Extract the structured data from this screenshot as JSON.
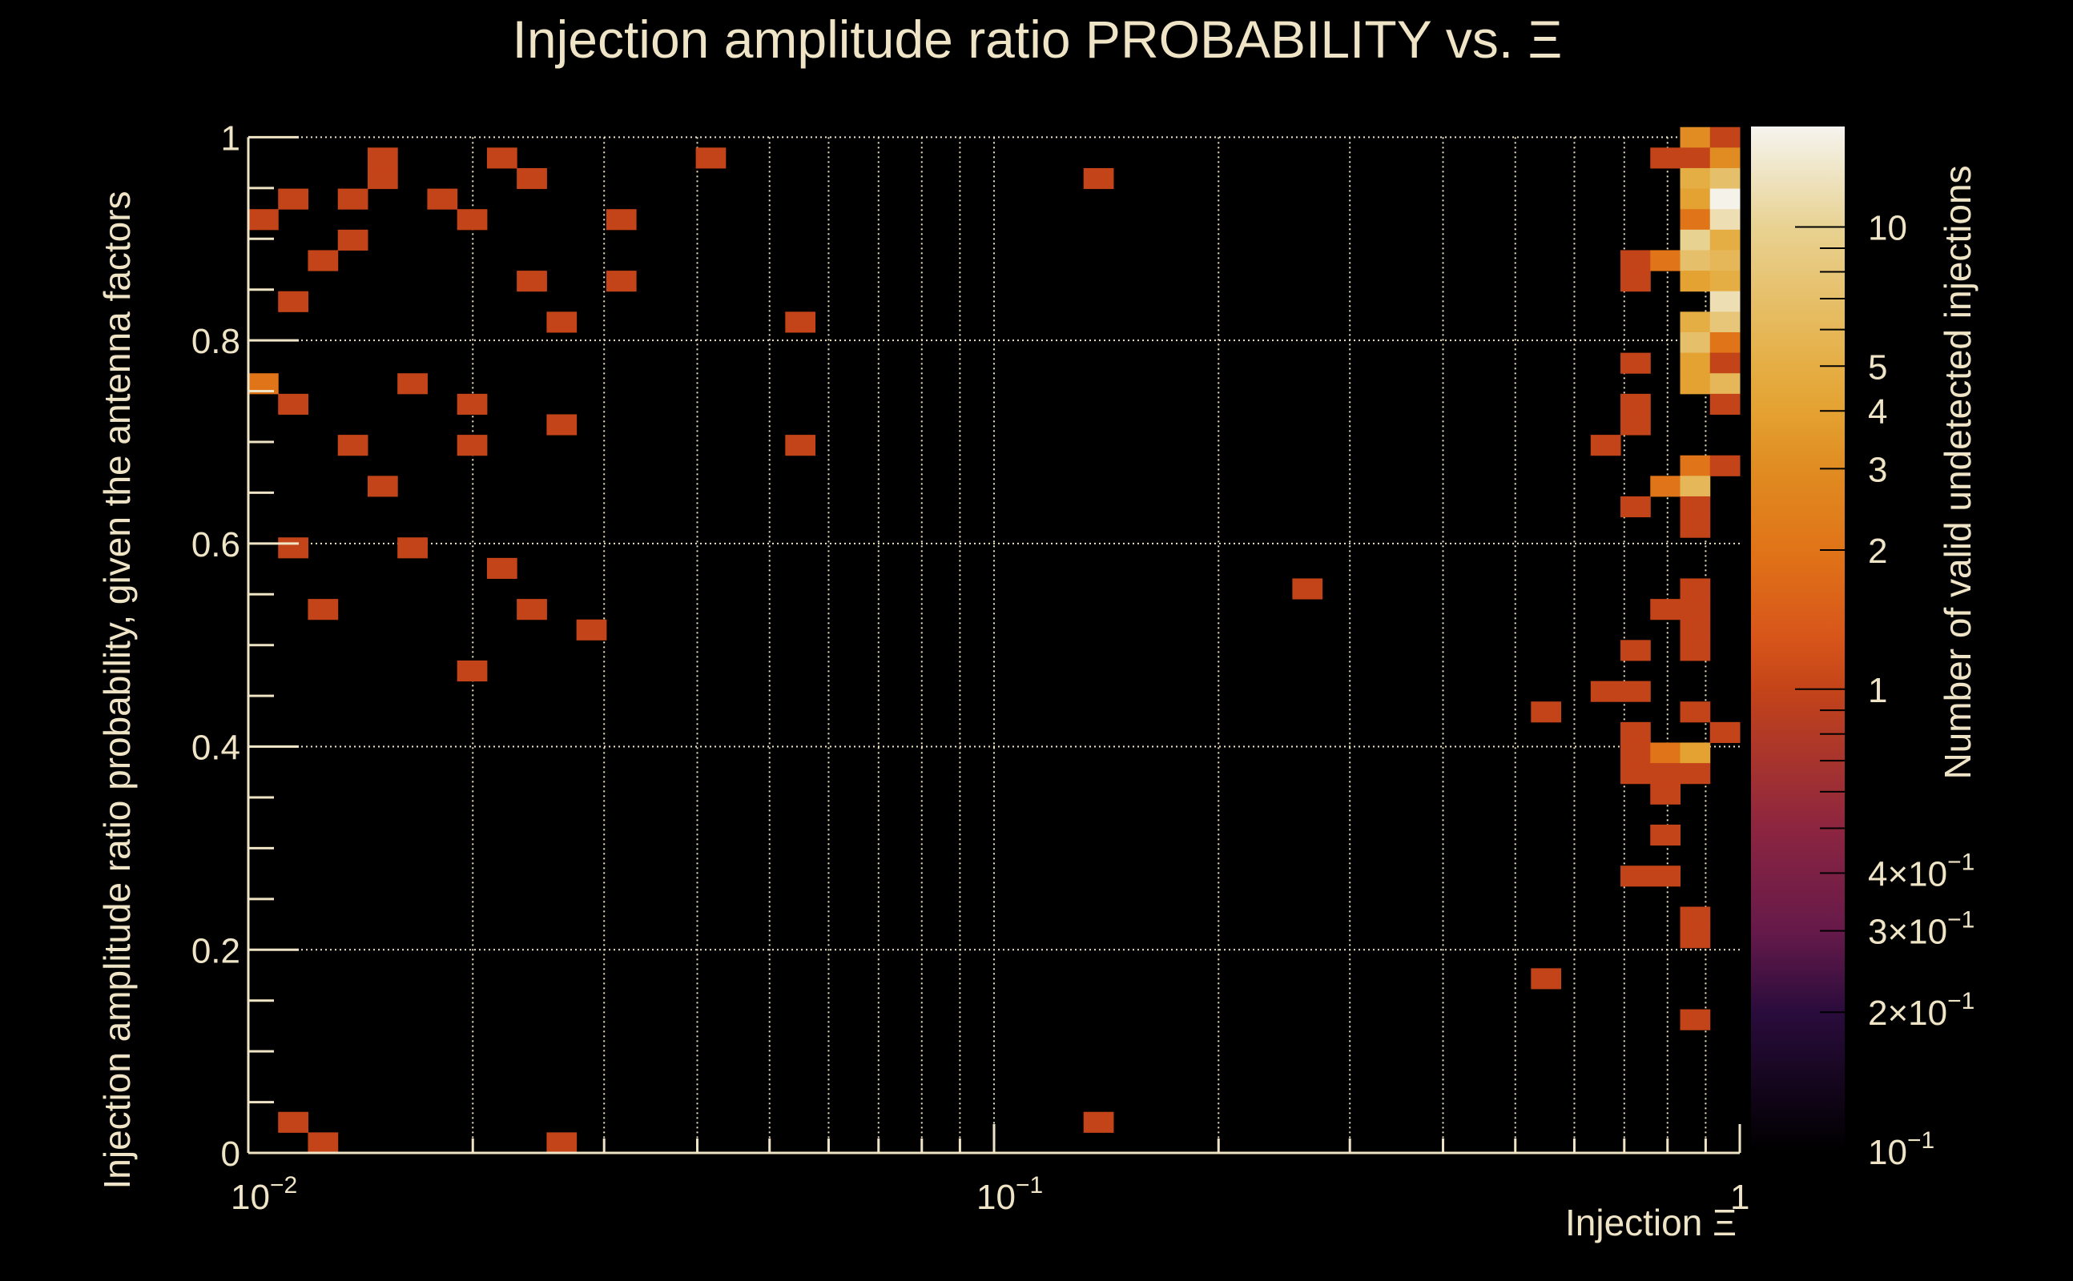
{
  "chart_data": {
    "type": "heatmap",
    "title": "Injection amplitude ratio PROBABILITY vs. Ξ",
    "xlabel": "Injection Ξ",
    "ylabel": "Injection amplitude ratio probability, given the antenna factors",
    "zlabel": "Number of valid undetected injections",
    "x_scale": "log",
    "xlim": [
      0.01,
      1
    ],
    "x_bins": 50,
    "ylim": [
      0,
      1
    ],
    "y_bin_range": [
      0,
      1.01
    ],
    "y_bins": 50,
    "z_scale": "log",
    "zlim": [
      0.1,
      16.5
    ],
    "grid": true,
    "colorbar_position": "right",
    "x_tick_labels": [
      {
        "value": 0.01,
        "base": "10",
        "exp": "−2"
      },
      {
        "value": 0.1,
        "base": "10",
        "exp": "−1"
      },
      {
        "value": 1,
        "base": "1",
        "exp": ""
      }
    ],
    "y_tick_labels": [
      {
        "value": 0,
        "label": "0"
      },
      {
        "value": 0.2,
        "label": "0.2"
      },
      {
        "value": 0.4,
        "label": "0.4"
      },
      {
        "value": 0.6,
        "label": "0.6"
      },
      {
        "value": 0.8,
        "label": "0.8"
      },
      {
        "value": 1,
        "label": "1"
      }
    ],
    "z_tick_labels": [
      {
        "value": 10,
        "base": "10",
        "exp": ""
      },
      {
        "value": 5,
        "base": "5",
        "exp": ""
      },
      {
        "value": 4,
        "base": "4",
        "exp": ""
      },
      {
        "value": 3,
        "base": "3",
        "exp": ""
      },
      {
        "value": 2,
        "base": "2",
        "exp": ""
      },
      {
        "value": 1,
        "base": "1",
        "exp": ""
      },
      {
        "value": 0.4,
        "base": "4×10",
        "exp": "−1"
      },
      {
        "value": 0.3,
        "base": "3×10",
        "exp": "−1"
      },
      {
        "value": 0.2,
        "base": "2×10",
        "exp": "−1"
      },
      {
        "value": 0.1,
        "base": "10",
        "exp": "−1"
      }
    ],
    "colormap": [
      {
        "z": 0.1,
        "color": "#000000"
      },
      {
        "z": 0.2,
        "color": "#2a0c3c"
      },
      {
        "z": 0.3,
        "color": "#661a4a"
      },
      {
        "z": 0.5,
        "color": "#8c2540"
      },
      {
        "z": 1,
        "color": "#c44419"
      },
      {
        "z": 1.3,
        "color": "#d8561a"
      },
      {
        "z": 2,
        "color": "#e07418"
      },
      {
        "z": 3,
        "color": "#e08c22"
      },
      {
        "z": 4,
        "color": "#e4a232"
      },
      {
        "z": 5,
        "color": "#e5ae44"
      },
      {
        "z": 10,
        "color": "#e8d292"
      },
      {
        "z": 16.5,
        "color": "#f5f4ef"
      }
    ],
    "cells_format": [
      "x_bin",
      "y_bin",
      "count"
    ],
    "cells": [
      [
        0,
        45,
        1
      ],
      [
        0,
        37,
        2
      ],
      [
        1,
        46,
        1
      ],
      [
        1,
        41,
        1
      ],
      [
        1,
        36,
        1
      ],
      [
        1,
        29,
        1
      ],
      [
        1,
        1,
        1
      ],
      [
        2,
        43,
        1
      ],
      [
        2,
        26,
        1
      ],
      [
        2,
        0,
        1
      ],
      [
        3,
        46,
        1
      ],
      [
        3,
        44,
        1
      ],
      [
        3,
        34,
        1
      ],
      [
        4,
        48,
        1
      ],
      [
        4,
        47,
        1
      ],
      [
        4,
        32,
        1
      ],
      [
        5,
        37,
        1
      ],
      [
        5,
        29,
        1
      ],
      [
        6,
        46,
        1
      ],
      [
        7,
        45,
        1
      ],
      [
        7,
        36,
        1
      ],
      [
        7,
        34,
        1
      ],
      [
        7,
        23,
        1
      ],
      [
        8,
        48,
        1
      ],
      [
        8,
        28,
        1
      ],
      [
        9,
        47,
        1
      ],
      [
        9,
        42,
        1
      ],
      [
        9,
        26,
        1
      ],
      [
        10,
        40,
        1
      ],
      [
        10,
        35,
        1
      ],
      [
        10,
        0,
        1
      ],
      [
        11,
        25,
        1
      ],
      [
        12,
        45,
        1
      ],
      [
        12,
        42,
        1
      ],
      [
        15,
        48,
        1
      ],
      [
        18,
        40,
        1
      ],
      [
        18,
        34,
        1
      ],
      [
        28,
        47,
        1
      ],
      [
        28,
        1,
        1
      ],
      [
        35,
        27,
        1
      ],
      [
        43,
        21,
        1
      ],
      [
        43,
        8,
        1
      ],
      [
        45,
        34,
        1
      ],
      [
        45,
        22,
        1
      ],
      [
        46,
        43,
        1
      ],
      [
        46,
        42,
        1
      ],
      [
        46,
        38,
        1
      ],
      [
        46,
        36,
        1
      ],
      [
        46,
        35,
        1
      ],
      [
        46,
        31,
        1
      ],
      [
        46,
        24,
        1
      ],
      [
        46,
        22,
        1
      ],
      [
        46,
        20,
        1
      ],
      [
        46,
        19,
        1
      ],
      [
        46,
        18,
        1
      ],
      [
        46,
        13,
        1
      ],
      [
        47,
        48,
        1
      ],
      [
        47,
        43,
        2
      ],
      [
        47,
        32,
        2
      ],
      [
        47,
        26,
        1
      ],
      [
        47,
        19,
        2
      ],
      [
        47,
        18,
        1
      ],
      [
        47,
        17,
        1
      ],
      [
        47,
        15,
        1
      ],
      [
        47,
        13,
        1
      ],
      [
        48,
        49,
        3
      ],
      [
        48,
        48,
        1
      ],
      [
        48,
        47,
        5
      ],
      [
        48,
        46,
        4
      ],
      [
        48,
        45,
        2
      ],
      [
        48,
        44,
        10
      ],
      [
        48,
        43,
        7
      ],
      [
        48,
        42,
        4
      ],
      [
        48,
        40,
        5
      ],
      [
        48,
        39,
        7
      ],
      [
        48,
        38,
        4
      ],
      [
        48,
        37,
        4
      ],
      [
        48,
        33,
        2
      ],
      [
        48,
        32,
        6
      ],
      [
        48,
        31,
        1
      ],
      [
        48,
        30,
        1
      ],
      [
        48,
        27,
        1
      ],
      [
        48,
        26,
        1
      ],
      [
        48,
        25,
        1
      ],
      [
        48,
        24,
        1
      ],
      [
        48,
        21,
        1
      ],
      [
        48,
        19,
        4
      ],
      [
        48,
        18,
        1
      ],
      [
        48,
        11,
        1
      ],
      [
        48,
        10,
        1
      ],
      [
        48,
        6,
        1
      ],
      [
        49,
        49,
        1
      ],
      [
        49,
        48,
        3
      ],
      [
        49,
        47,
        7
      ],
      [
        49,
        46,
        16
      ],
      [
        49,
        45,
        12
      ],
      [
        49,
        44,
        5
      ],
      [
        49,
        43,
        6
      ],
      [
        49,
        42,
        5
      ],
      [
        49,
        41,
        12
      ],
      [
        49,
        40,
        8
      ],
      [
        49,
        39,
        2
      ],
      [
        49,
        38,
        1
      ],
      [
        49,
        37,
        6
      ],
      [
        49,
        36,
        1
      ],
      [
        49,
        33,
        1
      ],
      [
        49,
        20,
        1
      ]
    ]
  }
}
